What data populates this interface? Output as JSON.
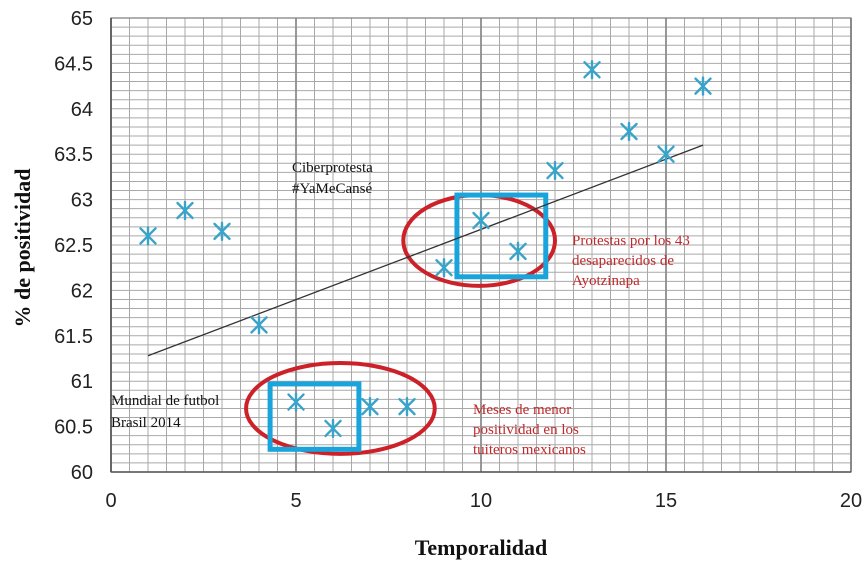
{
  "colors": {
    "marker": "#3aa3c9",
    "trendline": "#333333",
    "highlight_box": "#1aa4dc",
    "highlight_ellipse": "#cc2128",
    "annotation_red": "#c0292b",
    "grid_minor": "#a9a9a9",
    "grid_major": "#8c8c8c"
  },
  "chart_data": {
    "type": "scatter",
    "title": "",
    "xlabel": "Temporalidad",
    "ylabel": "% de positividad",
    "xlim": [
      0,
      20
    ],
    "ylim": [
      60,
      65
    ],
    "x_ticks": [
      0,
      5,
      10,
      15,
      20
    ],
    "y_ticks": [
      "60",
      "60.5",
      "61",
      "61.5",
      "62",
      "62.5",
      "63",
      "63.5",
      "64",
      "64.5",
      "65"
    ],
    "grid": true,
    "marker": "asterisk",
    "series": [
      {
        "points": [
          {
            "x": 1,
            "y": 62.6
          },
          {
            "x": 2,
            "y": 62.88
          },
          {
            "x": 3,
            "y": 62.65
          },
          {
            "x": 4,
            "y": 61.62
          },
          {
            "x": 5,
            "y": 60.77
          },
          {
            "x": 6,
            "y": 60.48
          },
          {
            "x": 7,
            "y": 60.72
          },
          {
            "x": 8,
            "y": 60.72
          },
          {
            "x": 9,
            "y": 62.25
          },
          {
            "x": 10,
            "y": 62.77
          },
          {
            "x": 11,
            "y": 62.43
          },
          {
            "x": 12,
            "y": 63.32
          },
          {
            "x": 13,
            "y": 64.43
          },
          {
            "x": 14,
            "y": 63.75
          },
          {
            "x": 15,
            "y": 63.5
          },
          {
            "x": 16,
            "y": 64.25
          }
        ]
      }
    ],
    "trendline": {
      "x": [
        1,
        16
      ],
      "y": [
        61.28,
        63.6
      ]
    },
    "highlight_boxes": [
      {
        "x": [
          4.3,
          6.7
        ],
        "y": [
          60.25,
          60.97
        ]
      },
      {
        "x": [
          9.35,
          11.75
        ],
        "y": [
          62.15,
          63.05
        ]
      }
    ],
    "highlight_ellipses": [
      {
        "cx": 6.2,
        "cy": 60.7,
        "rx": 2.55,
        "ry": 0.5
      },
      {
        "cx": 9.95,
        "cy": 62.55,
        "rx": 2.05,
        "ry": 0.5
      }
    ],
    "annotations": [
      {
        "id": "ciberprotesta",
        "lines": [
          "Ciberprotesta",
          "#YaMeCansé"
        ]
      },
      {
        "id": "protestas",
        "lines": [
          "Protestas por los 43",
          "desaparecidos de",
          "Ayotzinapa"
        ]
      },
      {
        "id": "mundial",
        "lines": [
          "Mundial de futbol",
          "Brasil 2014"
        ]
      },
      {
        "id": "meses",
        "lines": [
          "Meses de menor",
          "positividad en los",
          "tuiteros mexicanos"
        ]
      }
    ]
  }
}
